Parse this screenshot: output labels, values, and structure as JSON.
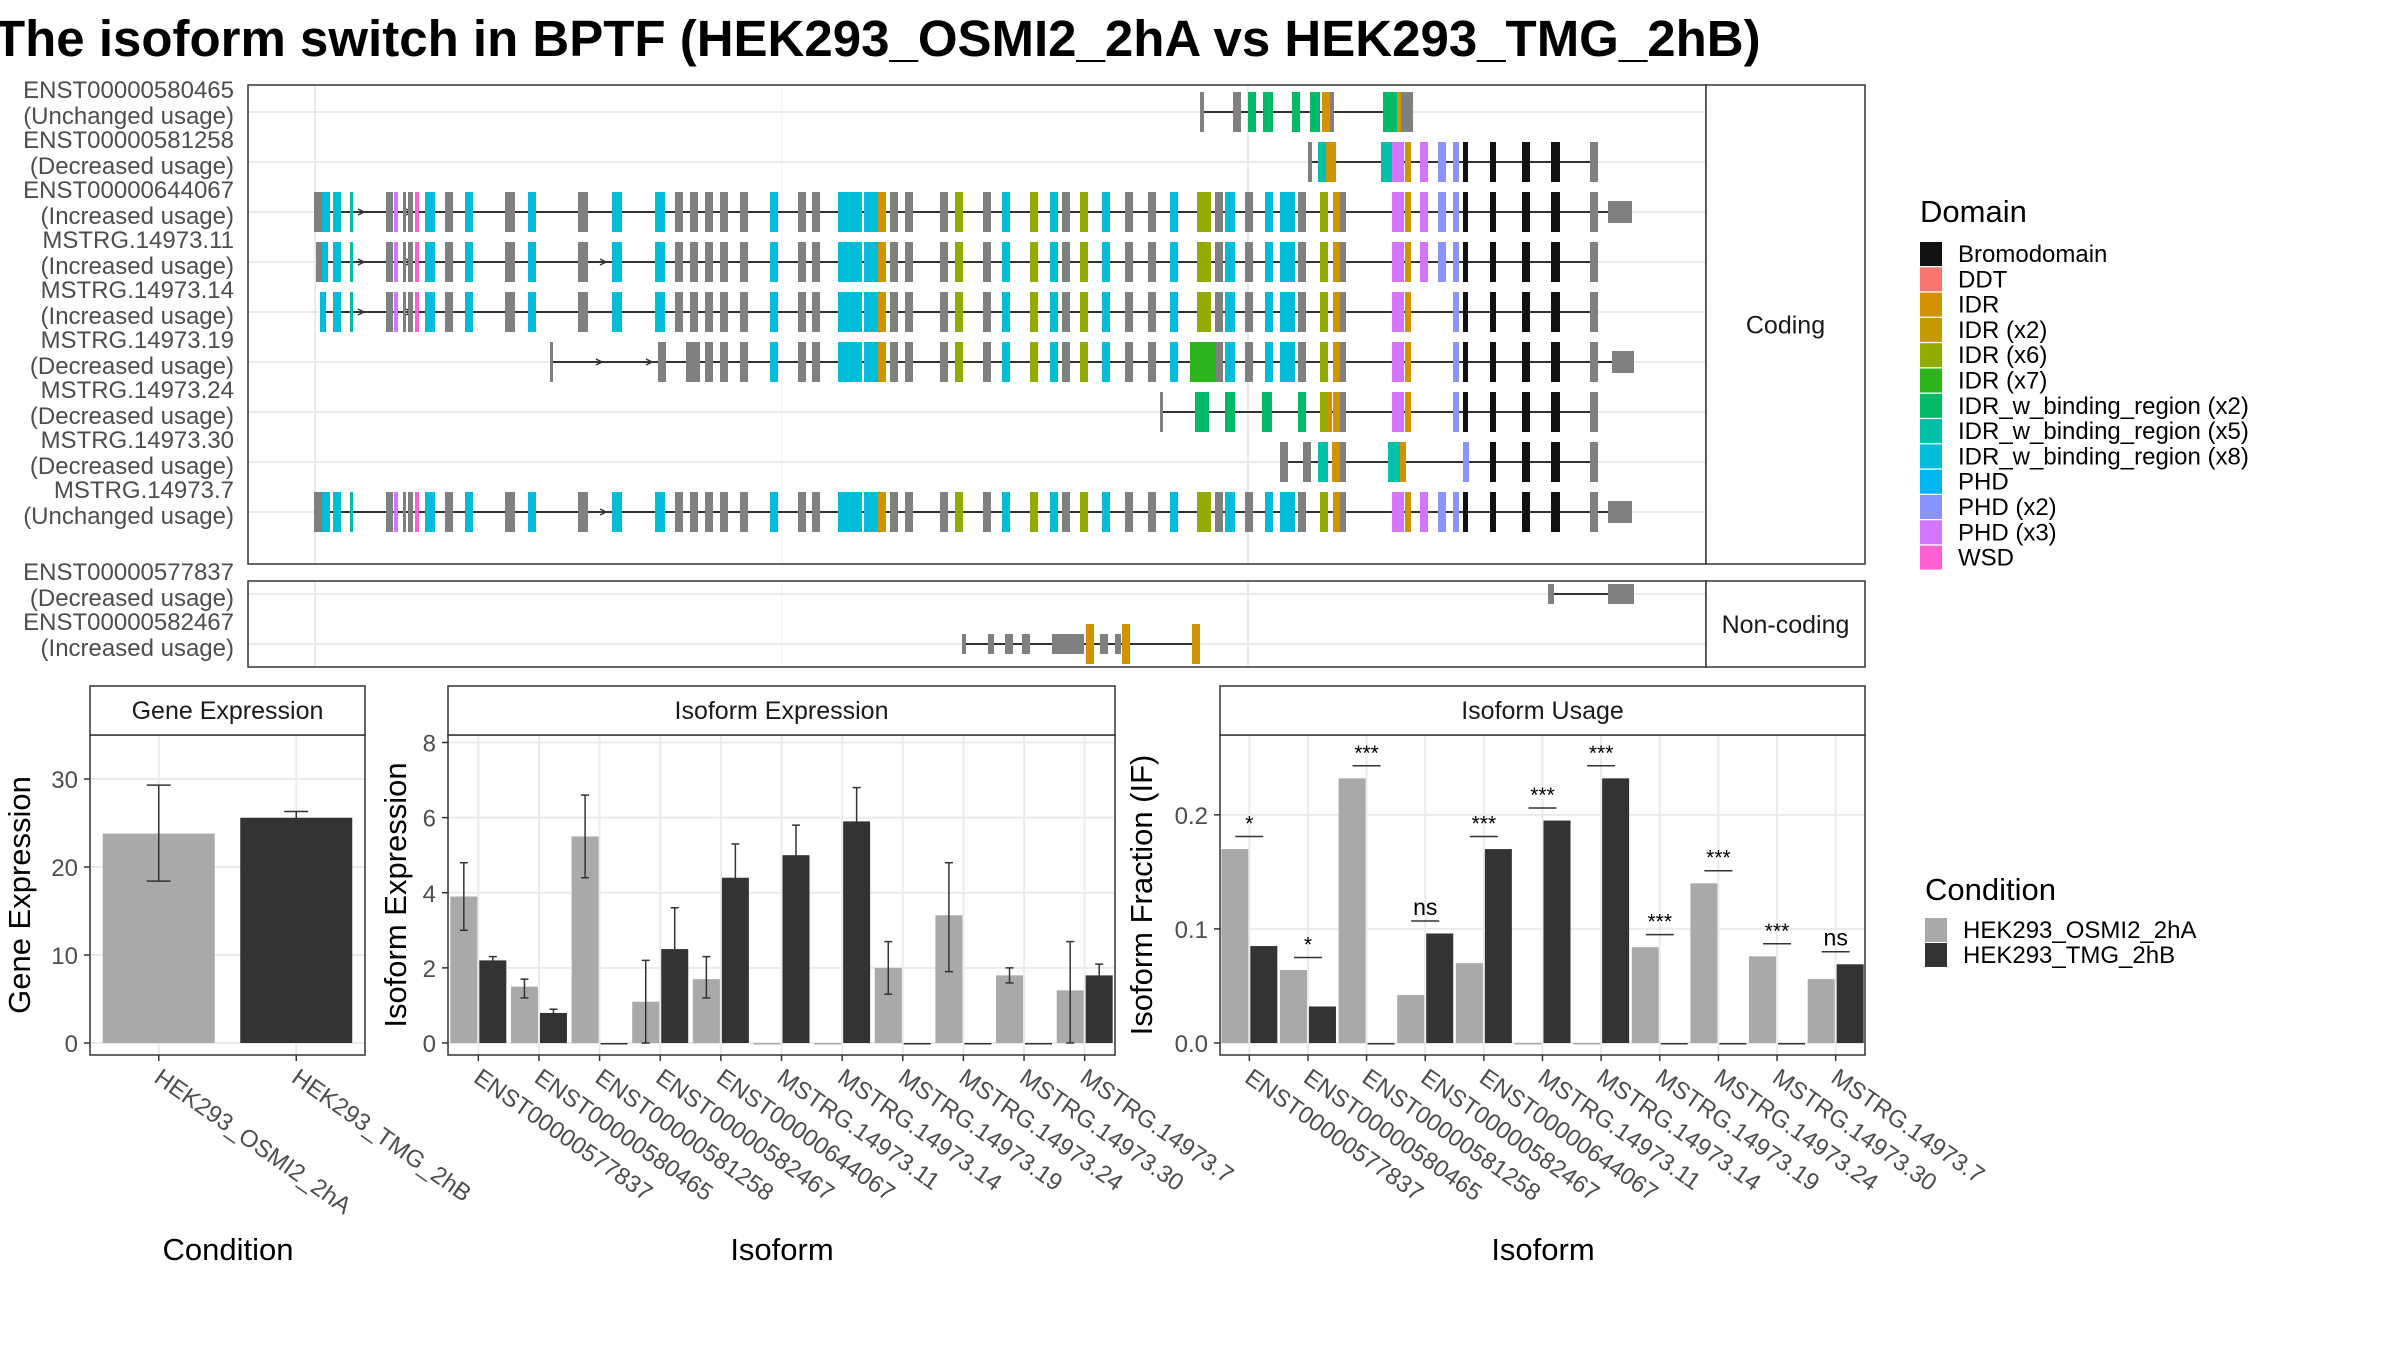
{
  "title": "The isoform switch in BPTF (HEK293_OSMI2_2hA vs HEK293_TMG_2hB)",
  "colors": {
    "cond_a": "#a9a9a9",
    "cond_b": "#333333",
    "panel_border": "#333333",
    "grid_major": "#ebebeb",
    "grid_minor": "#f5f5f5",
    "strip_fill": "#ffffff",
    "noncoding_exon": "#808080"
  },
  "chart_data": [
    {
      "type": "gene-structure",
      "panels": [
        {
          "name": "Coding",
          "transcripts": [
            {
              "id": "ENST00000580465",
              "usage": "(Unchanged usage)"
            },
            {
              "id": "ENST00000581258",
              "usage": "(Decreased usage)"
            },
            {
              "id": "ENST00000644067",
              "usage": "(Increased usage)"
            },
            {
              "id": "MSTRG.14973.11",
              "usage": "(Increased usage)"
            },
            {
              "id": "MSTRG.14973.14",
              "usage": "(Increased usage)"
            },
            {
              "id": "MSTRG.14973.19",
              "usage": "(Decreased usage)"
            },
            {
              "id": "MSTRG.14973.24",
              "usage": "(Decreased usage)"
            },
            {
              "id": "MSTRG.14973.30",
              "usage": "(Decreased usage)"
            },
            {
              "id": "MSTRG.14973.7",
              "usage": "(Unchanged usage)"
            }
          ]
        },
        {
          "name": "Non-coding",
          "transcripts": [
            {
              "id": "ENST00000577837",
              "usage": "(Decreased usage)"
            },
            {
              "id": "ENST00000582467",
              "usage": "(Increased usage)"
            }
          ]
        }
      ],
      "legend": {
        "title": "Domain",
        "placement": "right",
        "entries": [
          {
            "label": "Bromodomain",
            "color": "#111111"
          },
          {
            "label": "DDT",
            "color": "#f8766d"
          },
          {
            "label": "IDR",
            "color": "#d39200"
          },
          {
            "label": "IDR (x2)",
            "color": "#c49a00"
          },
          {
            "label": "IDR (x6)",
            "color": "#93aa00"
          },
          {
            "label": "IDR (x7)",
            "color": "#2bb51a"
          },
          {
            "label": "IDR_w_binding_region (x2)",
            "color": "#00ba68"
          },
          {
            "label": "IDR_w_binding_region (x5)",
            "color": "#00c1a7"
          },
          {
            "label": "IDR_w_binding_region (x8)",
            "color": "#00bcd8"
          },
          {
            "label": "PHD",
            "color": "#00b4f0"
          },
          {
            "label": "PHD (x2)",
            "color": "#8b93ff"
          },
          {
            "label": "PHD (x3)",
            "color": "#d376ff"
          },
          {
            "label": "WSD",
            "color": "#fd61d1"
          }
        ]
      }
    },
    {
      "type": "bar",
      "strip": "Gene Expression",
      "xlabel": "Condition",
      "ylabel": "Gene Expression",
      "ylim": [
        0,
        35
      ],
      "yticks": [
        0,
        10,
        20,
        30
      ],
      "categories": [
        "HEK293_OSMI2_2hA",
        "HEK293_TMG_2hB"
      ],
      "values": [
        23.8,
        25.6
      ],
      "errors": [
        [
          18.4,
          29.3
        ],
        [
          24.9,
          26.3
        ]
      ]
    },
    {
      "type": "bar",
      "strip": "Isoform Expression",
      "xlabel": "Isoform",
      "ylabel": "Isoform Expression",
      "ylim": [
        0,
        8.2
      ],
      "yticks": [
        0,
        2,
        4,
        6,
        8
      ],
      "categories": [
        "ENST00000577837",
        "ENST00000580465",
        "ENST00000581258",
        "ENST00000582467",
        "ENST00000644067",
        "MSTRG.14973.11",
        "MSTRG.14973.14",
        "MSTRG.14973.19",
        "MSTRG.14973.24",
        "MSTRG.14973.30",
        "MSTRG.14973.7"
      ],
      "series": [
        {
          "name": "HEK293_OSMI2_2hA",
          "values": [
            3.9,
            1.5,
            5.5,
            1.1,
            1.7,
            0,
            0,
            2.0,
            3.4,
            1.8,
            1.4
          ],
          "errors": [
            [
              3.0,
              4.8
            ],
            [
              1.2,
              1.7
            ],
            [
              4.4,
              6.6
            ],
            [
              0,
              2.2
            ],
            [
              1.2,
              2.3
            ],
            [
              0,
              0
            ],
            [
              0,
              0
            ],
            [
              1.3,
              2.7
            ],
            [
              1.9,
              4.8
            ],
            [
              1.6,
              2.0
            ],
            [
              0,
              2.7
            ]
          ]
        },
        {
          "name": "HEK293_TMG_2hB",
          "values": [
            2.2,
            0.8,
            0,
            2.5,
            4.4,
            5.0,
            5.9,
            0,
            0,
            0,
            1.8
          ],
          "errors": [
            [
              2.0,
              2.3
            ],
            [
              0.7,
              0.9
            ],
            [
              0,
              0
            ],
            [
              1.3,
              3.6
            ],
            [
              3.3,
              5.3
            ],
            [
              4.1,
              5.8
            ],
            [
              5.0,
              6.8
            ],
            [
              0,
              0
            ],
            [
              0,
              0
            ],
            [
              0,
              0
            ],
            [
              1.5,
              2.1
            ]
          ]
        }
      ]
    },
    {
      "type": "bar",
      "strip": "Isoform Usage",
      "xlabel": "Isoform",
      "ylabel": "Isoform Fraction (IF)",
      "ylim": [
        0,
        0.27
      ],
      "yticks": [
        0.0,
        0.1,
        0.2
      ],
      "ytick_labels": [
        "0.0",
        "0.1",
        "0.2"
      ],
      "categories": [
        "ENST00000577837",
        "ENST00000580465",
        "ENST00000581258",
        "ENST00000582467",
        "ENST00000644067",
        "MSTRG.14973.11",
        "MSTRG.14973.14",
        "MSTRG.14973.19",
        "MSTRG.14973.24",
        "MSTRG.14973.30",
        "MSTRG.14973.7"
      ],
      "series": [
        {
          "name": "HEK293_OSMI2_2hA",
          "values": [
            0.17,
            0.064,
            0.232,
            0.042,
            0.07,
            0,
            0,
            0.084,
            0.14,
            0.076,
            0.056
          ]
        },
        {
          "name": "HEK293_TMG_2hB",
          "values": [
            0.085,
            0.032,
            0,
            0.096,
            0.17,
            0.195,
            0.232,
            0,
            0,
            0,
            0.069
          ]
        }
      ],
      "significance": [
        "*",
        "*",
        "***",
        "ns",
        "***",
        "***",
        "***",
        "***",
        "***",
        "***",
        "ns"
      ],
      "significance_y": [
        0.181,
        0.075,
        0.243,
        0.107,
        0.181,
        0.206,
        0.243,
        0.095,
        0.151,
        0.087,
        0.08
      ]
    }
  ],
  "condition_legend": {
    "title": "Condition",
    "entries": [
      "HEK293_OSMI2_2hA",
      "HEK293_TMG_2hB"
    ]
  }
}
